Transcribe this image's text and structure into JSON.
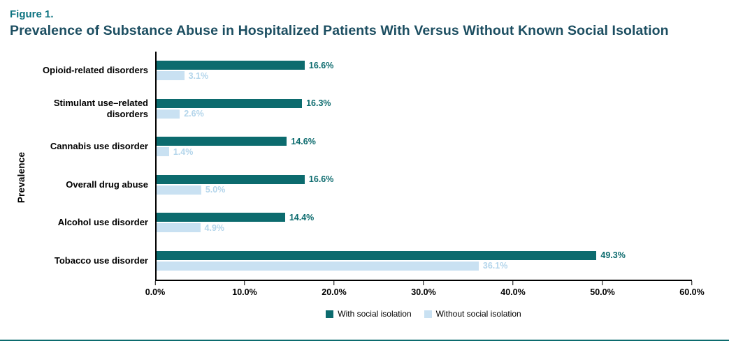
{
  "figure": {
    "label": "Figure 1.",
    "title": "Prevalence of Substance Abuse in Hospitalized Patients With Versus Without Known Social Isolation"
  },
  "colors": {
    "figure_label": "#0d7380",
    "title": "#1c4e61",
    "axis": "#000000",
    "bottom_rule": "#0c6b6e"
  },
  "chart_data": {
    "type": "bar",
    "orientation": "horizontal",
    "title": "Prevalence of Substance Abuse in Hospitalized Patients With Versus Without Known Social Isolation",
    "ylabel": "Prevalence",
    "xlabel": "",
    "categories": [
      "Opioid-related disorders",
      "Stimulant use–related disorders",
      "Cannabis use disorder",
      "Overall drug abuse",
      "Alcohol use disorder",
      "Tobacco use disorder"
    ],
    "series": [
      {
        "name": "With social isolation",
        "color": "#0c6b6e",
        "label_color": "#0c6b6e",
        "values": [
          16.6,
          16.3,
          14.6,
          16.6,
          14.4,
          49.3
        ],
        "labels": [
          "16.6%",
          "16.3%",
          "14.6%",
          "16.6%",
          "14.4%",
          "49.3%"
        ]
      },
      {
        "name": "Without social isolation",
        "color": "#c9e1f2",
        "label_color": "#b3d5eb",
        "values": [
          3.1,
          2.6,
          1.4,
          5.0,
          4.9,
          36.1
        ],
        "labels": [
          "3.1%",
          "2.6%",
          "1.4%",
          "5.0%",
          "4.9%",
          "36.1%"
        ]
      }
    ],
    "xlim": [
      0,
      60
    ],
    "x_ticks": [
      "0.0%",
      "10.0%",
      "20.0%",
      "30.0%",
      "40.0%",
      "50.0%",
      "60.0%"
    ],
    "grid": false,
    "legend_position": "bottom"
  }
}
